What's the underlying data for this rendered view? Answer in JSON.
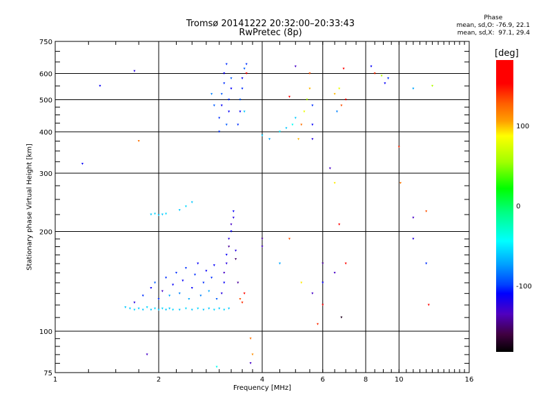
{
  "chart_data": {
    "type": "scatter",
    "title": "Tromsø 20141222 20:32:00–20:33:43",
    "subtitle": "RwPretec (8p)",
    "xlabel": "Frequency [MHz]",
    "ylabel": "Stationary phase Virtual Height [km]",
    "xscale": "log",
    "yscale": "log",
    "xlim": [
      1,
      16
    ],
    "ylim": [
      75,
      750
    ],
    "xticks": [
      "1",
      "2",
      "4",
      "6",
      "8",
      "10",
      "16"
    ],
    "xtick_values": [
      1,
      2,
      4,
      6,
      8,
      10,
      16
    ],
    "yticks": [
      "75",
      "100",
      "200",
      "300",
      "400",
      "500",
      "600",
      "750"
    ],
    "ytick_values": [
      75,
      100,
      200,
      300,
      400,
      500,
      600,
      750
    ],
    "grid": true,
    "colorbar": {
      "label": "[deg]",
      "range": [
        -180,
        180
      ],
      "ticks": [
        "100",
        "0",
        "-100"
      ],
      "tick_values": [
        100,
        0,
        -100
      ]
    },
    "stats": {
      "heading": "Phase",
      "o_line": "mean, sd,O: -76.9, 22.1",
      "x_line": "mean, sd,X:  97.1, 29.4"
    },
    "points_format": "[frequency_MHz, height_km, phase_deg]",
    "points": [
      [
        1.2,
        320,
        -110
      ],
      [
        1.35,
        550,
        -110
      ],
      [
        1.7,
        610,
        -120
      ],
      [
        1.75,
        375,
        120
      ],
      [
        1.85,
        85,
        -130
      ],
      [
        2.95,
        78,
        -40
      ],
      [
        1.6,
        118,
        -60
      ],
      [
        1.65,
        117,
        -60
      ],
      [
        1.7,
        116,
        -55
      ],
      [
        1.75,
        117,
        -60
      ],
      [
        1.8,
        116,
        -60
      ],
      [
        1.85,
        118,
        -55
      ],
      [
        1.9,
        116,
        -60
      ],
      [
        1.95,
        117,
        -55
      ],
      [
        2.0,
        116,
        -60
      ],
      [
        2.05,
        117,
        -55
      ],
      [
        2.1,
        116,
        -60
      ],
      [
        2.15,
        117,
        -60
      ],
      [
        2.2,
        116,
        -55
      ],
      [
        2.3,
        116,
        -60
      ],
      [
        2.4,
        117,
        -55
      ],
      [
        2.5,
        116,
        -60
      ],
      [
        2.6,
        117,
        -55
      ],
      [
        2.7,
        116,
        -60
      ],
      [
        2.8,
        117,
        -60
      ],
      [
        2.9,
        116,
        -55
      ],
      [
        3.0,
        117,
        -60
      ],
      [
        3.1,
        116,
        -55
      ],
      [
        3.2,
        117,
        -60
      ],
      [
        1.7,
        122,
        -120
      ],
      [
        1.8,
        128,
        -100
      ],
      [
        1.9,
        135,
        -110
      ],
      [
        1.95,
        140,
        -90
      ],
      [
        2.0,
        125,
        -100
      ],
      [
        2.05,
        132,
        -130
      ],
      [
        2.1,
        145,
        -100
      ],
      [
        2.15,
        128,
        -70
      ],
      [
        2.2,
        138,
        -110
      ],
      [
        2.25,
        150,
        -100
      ],
      [
        2.3,
        130,
        -80
      ],
      [
        2.35,
        142,
        -110
      ],
      [
        2.4,
        155,
        -100
      ],
      [
        2.45,
        125,
        -70
      ],
      [
        2.5,
        135,
        -110
      ],
      [
        2.55,
        148,
        -100
      ],
      [
        2.6,
        160,
        -110
      ],
      [
        2.65,
        128,
        -80
      ],
      [
        2.7,
        140,
        -100
      ],
      [
        2.75,
        152,
        -110
      ],
      [
        2.8,
        132,
        -70
      ],
      [
        2.85,
        145,
        -100
      ],
      [
        2.9,
        158,
        -110
      ],
      [
        2.95,
        125,
        -90
      ],
      [
        3.05,
        130,
        -120
      ],
      [
        3.1,
        140,
        -110
      ],
      [
        3.1,
        150,
        -130
      ],
      [
        3.15,
        160,
        -120
      ],
      [
        3.15,
        170,
        -110
      ],
      [
        3.2,
        180,
        -140
      ],
      [
        3.2,
        190,
        -120
      ],
      [
        3.25,
        200,
        -110
      ],
      [
        3.25,
        210,
        -130
      ],
      [
        3.3,
        220,
        -120
      ],
      [
        3.3,
        230,
        -110
      ],
      [
        3.35,
        165,
        -150
      ],
      [
        3.35,
        175,
        -120
      ],
      [
        3.4,
        140,
        -140
      ],
      [
        3.45,
        125,
        130
      ],
      [
        3.5,
        122,
        140
      ],
      [
        3.55,
        130,
        150
      ],
      [
        1.9,
        225,
        -60
      ],
      [
        1.95,
        226,
        -55
      ],
      [
        2.0,
        224,
        -60
      ],
      [
        2.05,
        225,
        -60
      ],
      [
        2.1,
        226,
        -55
      ],
      [
        2.3,
        232,
        -60
      ],
      [
        2.4,
        238,
        -55
      ],
      [
        2.5,
        245,
        -60
      ],
      [
        3.0,
        440,
        -100
      ],
      [
        3.05,
        480,
        -110
      ],
      [
        3.05,
        520,
        -90
      ],
      [
        3.1,
        560,
        -100
      ],
      [
        3.1,
        600,
        -110
      ],
      [
        3.15,
        640,
        -100
      ],
      [
        3.15,
        420,
        -90
      ],
      [
        3.2,
        460,
        -110
      ],
      [
        3.2,
        500,
        -100
      ],
      [
        3.25,
        540,
        -110
      ],
      [
        3.25,
        580,
        -90
      ],
      [
        3.0,
        400,
        -100
      ],
      [
        2.9,
        480,
        -90
      ],
      [
        2.85,
        520,
        -80
      ],
      [
        3.4,
        420,
        -100
      ],
      [
        3.45,
        460,
        -110
      ],
      [
        3.45,
        500,
        -90
      ],
      [
        3.5,
        540,
        -100
      ],
      [
        3.5,
        580,
        -110
      ],
      [
        3.55,
        620,
        -90
      ],
      [
        3.6,
        640,
        -100
      ],
      [
        3.6,
        600,
        150
      ],
      [
        3.55,
        460,
        -60
      ],
      [
        4.0,
        390,
        -60
      ],
      [
        4.2,
        380,
        -70
      ],
      [
        4.5,
        400,
        -50
      ],
      [
        4.7,
        410,
        -60
      ],
      [
        4.9,
        420,
        -40
      ],
      [
        5.0,
        440,
        -60
      ],
      [
        5.1,
        380,
        100
      ],
      [
        5.2,
        420,
        120
      ],
      [
        5.3,
        460,
        80
      ],
      [
        5.4,
        500,
        60
      ],
      [
        5.5,
        540,
        100
      ],
      [
        5.6,
        480,
        -100
      ],
      [
        5.6,
        420,
        -110
      ],
      [
        5.6,
        380,
        -120
      ],
      [
        5.5,
        600,
        130
      ],
      [
        5.0,
        630,
        -130
      ],
      [
        4.8,
        510,
        160
      ],
      [
        6.5,
        520,
        100
      ],
      [
        6.6,
        460,
        -80
      ],
      [
        6.7,
        540,
        80
      ],
      [
        6.8,
        480,
        130
      ],
      [
        7.0,
        500,
        150
      ],
      [
        6.3,
        310,
        -130
      ],
      [
        6.5,
        280,
        90
      ],
      [
        6.7,
        210,
        160
      ],
      [
        6.9,
        620,
        170
      ],
      [
        8.3,
        630,
        -110
      ],
      [
        8.5,
        600,
        140
      ],
      [
        8.9,
        590,
        60
      ],
      [
        9.1,
        560,
        -110
      ],
      [
        9.3,
        580,
        -100
      ],
      [
        10,
        360,
        140
      ],
      [
        10.1,
        280,
        120
      ],
      [
        11,
        540,
        -70
      ],
      [
        11,
        220,
        -130
      ],
      [
        11,
        190,
        -120
      ],
      [
        12,
        230,
        130
      ],
      [
        12,
        160,
        -100
      ],
      [
        12.2,
        120,
        150
      ],
      [
        12.5,
        550,
        60
      ],
      [
        4.0,
        180,
        -130
      ],
      [
        4.0,
        190,
        -140
      ],
      [
        4.5,
        160,
        -70
      ],
      [
        4.8,
        190,
        130
      ],
      [
        5.2,
        140,
        90
      ],
      [
        5.6,
        130,
        -130
      ],
      [
        6.0,
        120,
        170
      ],
      [
        6.0,
        140,
        -110
      ],
      [
        6.0,
        160,
        -140
      ],
      [
        6.5,
        150,
        -130
      ],
      [
        6.8,
        110,
        -170
      ],
      [
        7.0,
        160,
        150
      ],
      [
        5.8,
        105,
        140
      ],
      [
        3.7,
        95,
        120
      ],
      [
        3.75,
        85,
        110
      ],
      [
        3.7,
        80,
        -130
      ]
    ]
  }
}
